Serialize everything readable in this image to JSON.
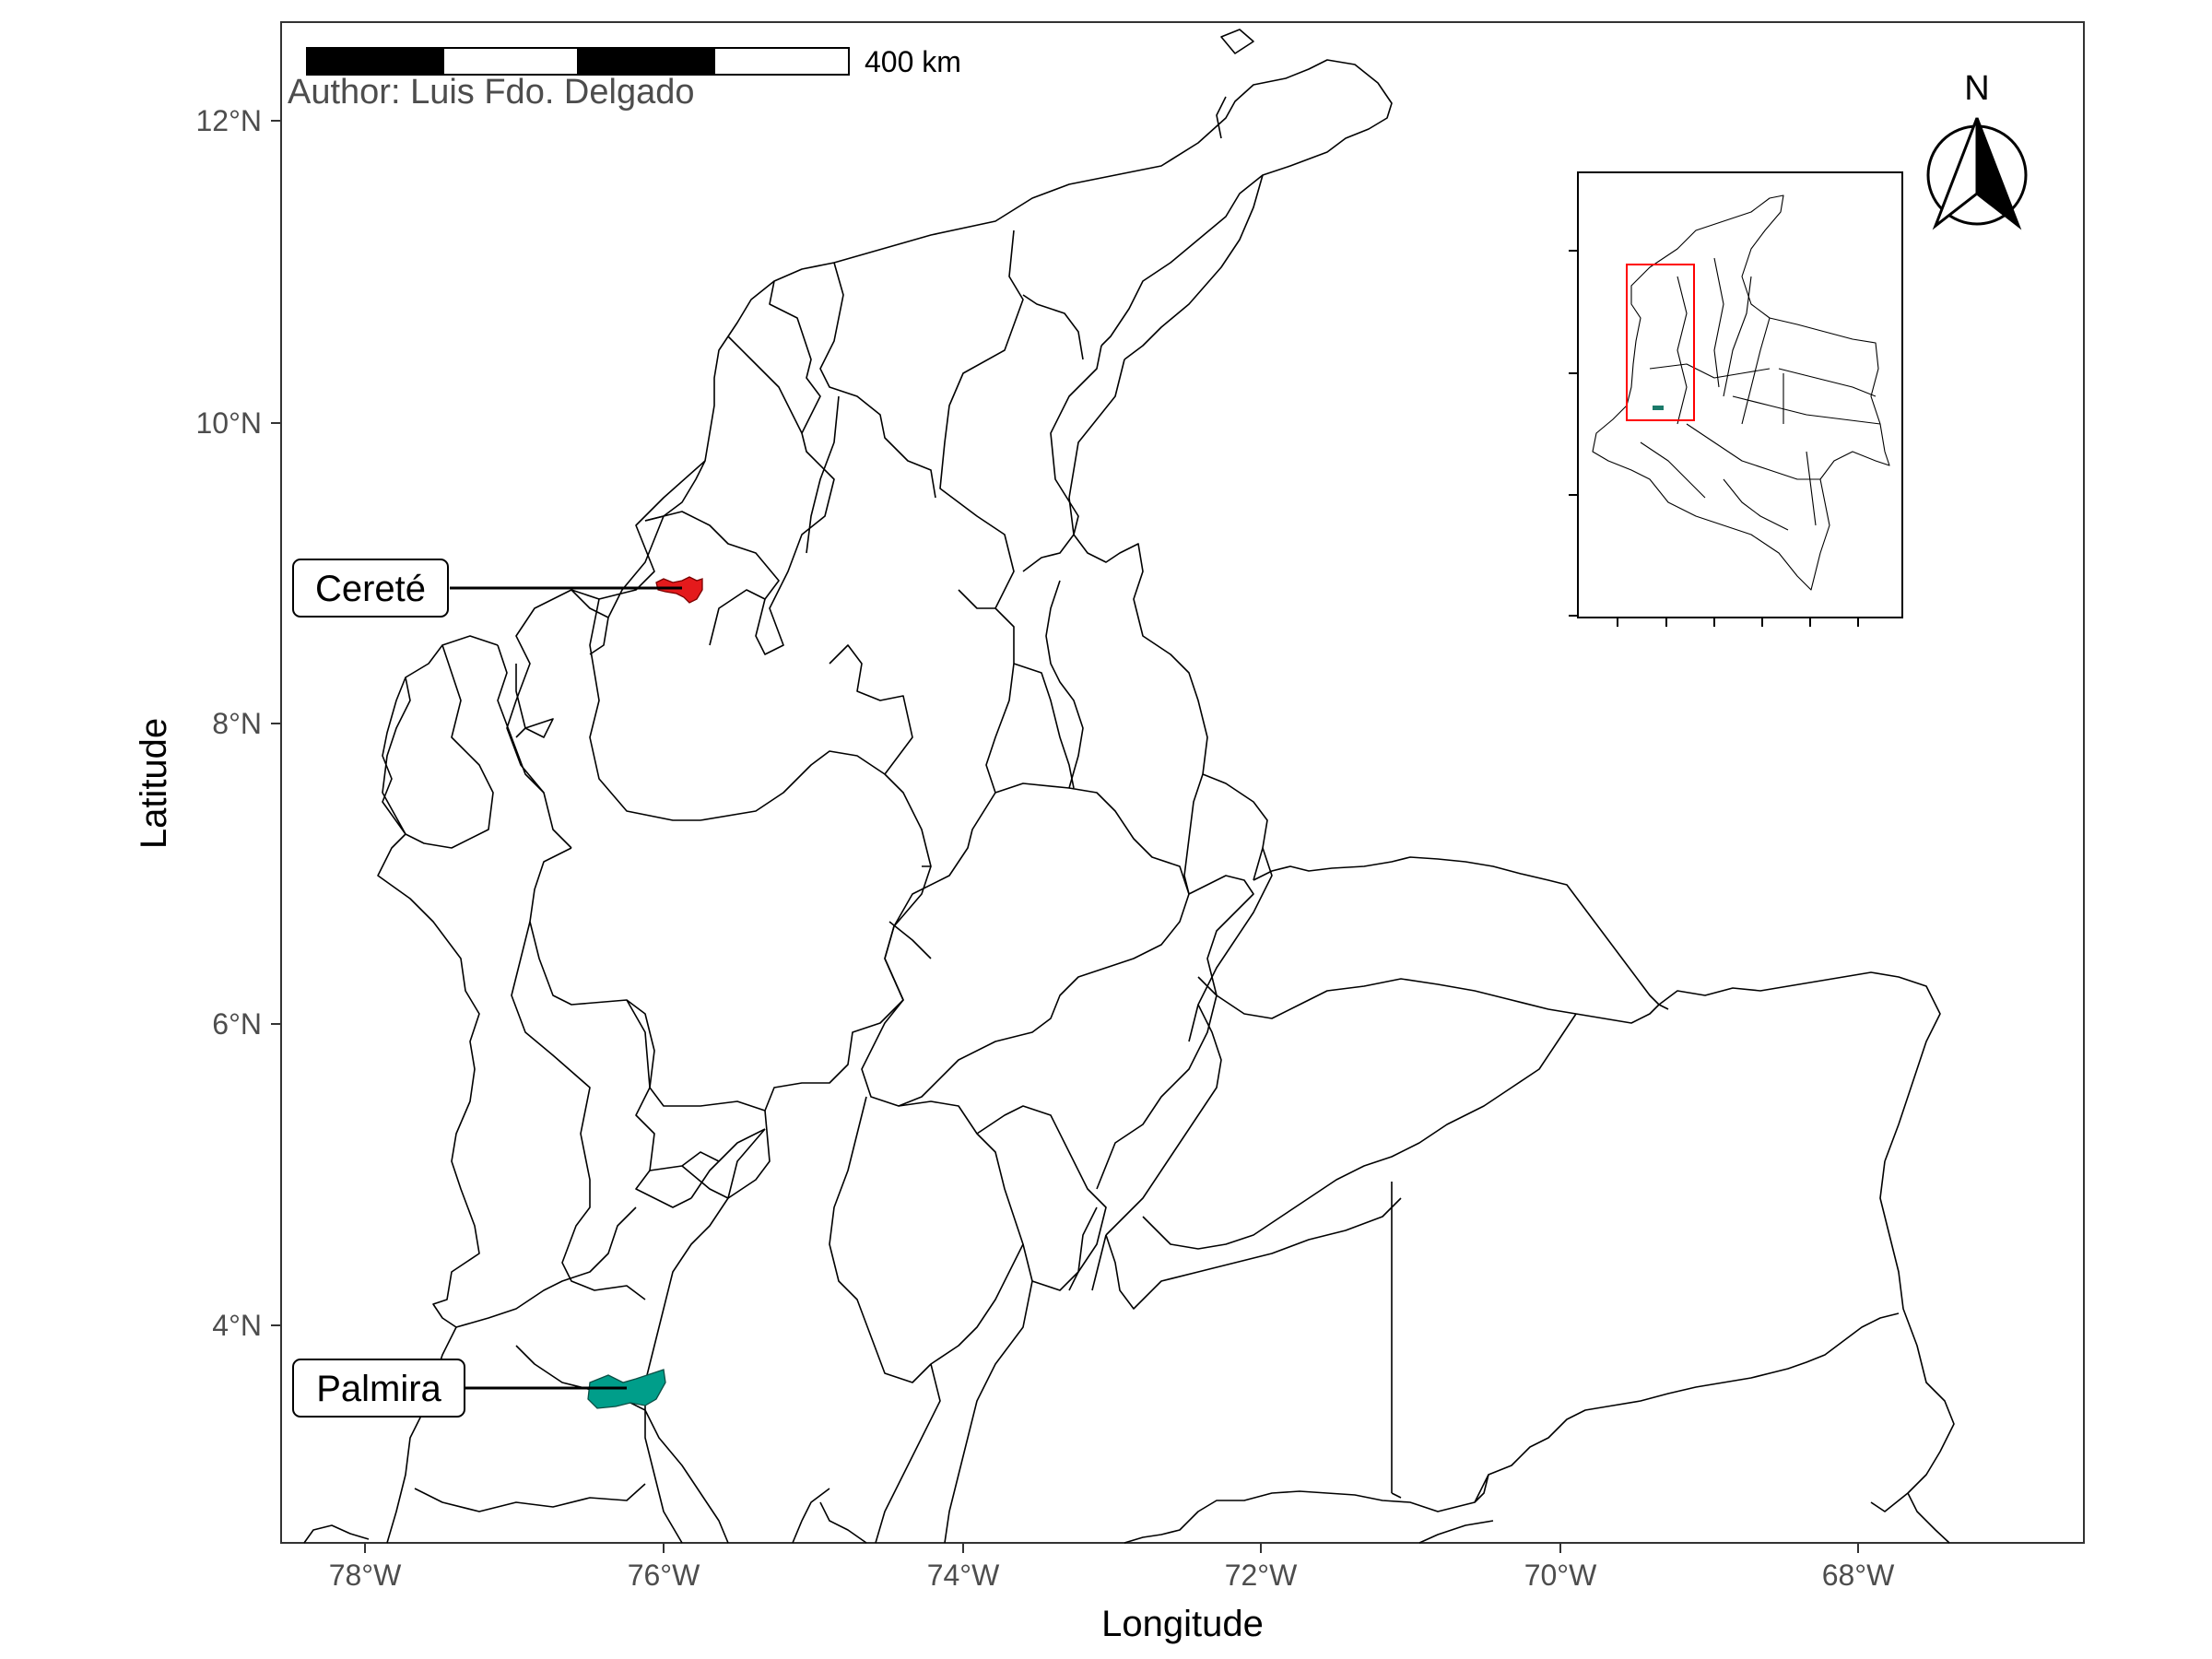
{
  "map": {
    "author": "Author: Luis Fdo. Delgado",
    "scale_bar_label": "400 km",
    "north_arrow_label": "N",
    "x_axis_title": "Longitude",
    "y_axis_title": "Latitude",
    "x_ticks": [
      "78°W",
      "76°W",
      "74°W",
      "72°W",
      "70°W",
      "68°W"
    ],
    "y_ticks": [
      "12°N",
      "10°N",
      "8°N",
      "6°N",
      "4°N"
    ],
    "x_tick_values": [
      -78,
      -76,
      -74,
      -72,
      -70,
      -68
    ],
    "y_tick_values": [
      12,
      10,
      8,
      6,
      4
    ],
    "lon_range": [
      -78.55,
      -62.45
    ],
    "lat_range": [
      2.65,
      12.75
    ],
    "highlighted_municipalities": [
      {
        "name": "Cereté",
        "lon": -75.85,
        "lat": 8.88,
        "color": "#e41a1c"
      },
      {
        "name": "Palmira",
        "lon": -76.2,
        "lat": 3.55,
        "color": "#009e8a"
      }
    ],
    "inset": {
      "highlight_box_color": "#ff0000",
      "highlight_region_color": "#1b7a6a"
    }
  }
}
